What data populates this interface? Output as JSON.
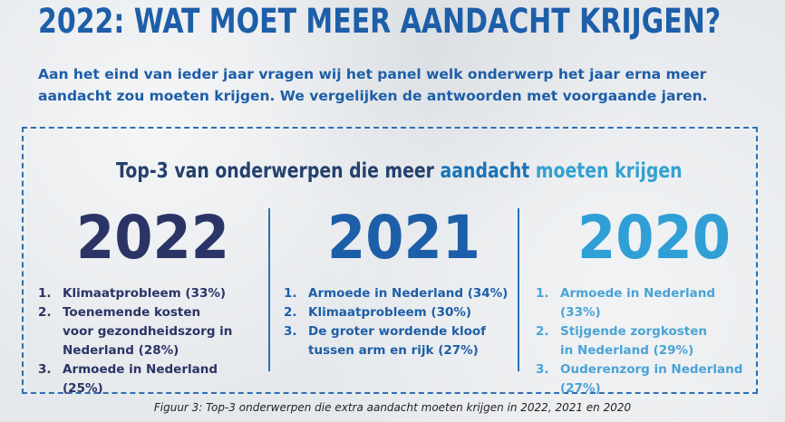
{
  "header": {
    "title": "2022: WAT MOET MEER AANDACHT KRIJGEN?",
    "intro": "Aan het eind van ieder jaar vragen wij het panel welk onderwerp het jaar erna meer aandacht zou moeten krijgen. We vergelijken de antwoorden met voorgaande jaren."
  },
  "panel": {
    "subtitle_part1": "Top-3 van onderwerpen die meer",
    "subtitle_part2": "aandacht",
    "subtitle_part3": "moeten krijgen",
    "columns": [
      {
        "year": "2022",
        "items": [
          {
            "num": "1.",
            "text": "Klimaatprobleem (33%)"
          },
          {
            "num": "2.",
            "text": "Toenemende kosten voor gezondheidszorg in Nederland (28%)"
          },
          {
            "num": "3.",
            "text": "Armoede in Nederland (25%)"
          }
        ]
      },
      {
        "year": "2021",
        "items": [
          {
            "num": "1.",
            "text": "Armoede in Nederland (34%)"
          },
          {
            "num": "2.",
            "text": "Klimaatprobleem (30%)"
          },
          {
            "num": "3.",
            "text": "De groter wordende kloof tussen arm en rijk (27%)"
          }
        ]
      },
      {
        "year": "2020",
        "items": [
          {
            "num": "1.",
            "text": "Armoede in Nederland (33%)"
          },
          {
            "num": "2.",
            "text": "Stijgende zorgkosten in Nederland (29%)"
          },
          {
            "num": "3.",
            "text": "Ouderenzorg in Nederland (27%)"
          }
        ]
      }
    ]
  },
  "caption": "Figuur 3: Top-3 onderwerpen die extra aandacht moeten krijgen in 2022, 2021 en 2020",
  "colors": {
    "title": "#1d5ea8",
    "year_2022": "#2b3466",
    "year_2021": "#1d5ea8",
    "year_2020": "#2f9fd6",
    "frame": "#2d6fb3"
  }
}
